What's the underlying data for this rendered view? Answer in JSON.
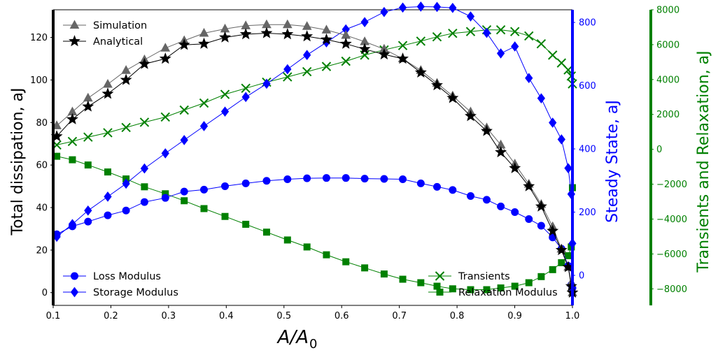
{
  "chart_data": {
    "type": "line",
    "xlabel_main": "A/A",
    "xlabel_sub": "0",
    "x_ticks": [
      "0.1",
      "0.2",
      "0.3",
      "0.4",
      "0.5",
      "0.6",
      "0.7",
      "0.8",
      "0.9",
      "1.0"
    ],
    "xlim": [
      0.1,
      1.0
    ],
    "axes": {
      "left": {
        "label": "Total dissipation, aJ",
        "ylim": [
          -6,
          133
        ],
        "ticks": [
          0,
          20,
          40,
          60,
          80,
          100,
          120
        ],
        "color": "#000000"
      },
      "right1": {
        "label": "Steady State, aJ",
        "ylim": [
          -95,
          840
        ],
        "ticks": [
          0,
          200,
          400,
          600,
          800
        ],
        "color": "#0000ff"
      },
      "right2": {
        "label": "Transients and Relaxation, aJ",
        "ylim": [
          -8950,
          8000
        ],
        "ticks": [
          -8000,
          -6000,
          -4000,
          -2000,
          0,
          2000,
          4000,
          6000,
          8000
        ],
        "color": "#008000"
      }
    },
    "x": [
      0.1062,
      0.1333,
      0.1604,
      0.1946,
      0.2263,
      0.2582,
      0.2944,
      0.3271,
      0.3614,
      0.3978,
      0.4338,
      0.4699,
      0.5061,
      0.5399,
      0.5736,
      0.6073,
      0.6399,
      0.6736,
      0.7059,
      0.7372,
      0.7653,
      0.7924,
      0.8235,
      0.8514,
      0.8758,
      0.9002,
      0.9245,
      0.9459,
      0.9657,
      0.981,
      0.9927,
      0.998,
      1.0
    ],
    "series": [
      {
        "name": "Simulation",
        "axis": "left",
        "color": "#666666",
        "marker": "triangle",
        "values": [
          78.5,
          85,
          91.5,
          98,
          104.5,
          109.5,
          115,
          118.5,
          122,
          124,
          125.5,
          126,
          126,
          125.2,
          123.5,
          121,
          118,
          114.5,
          110,
          104.5,
          98.5,
          92.5,
          85,
          77.5,
          69.5,
          60.5,
          51,
          41.5,
          31,
          20.5,
          12,
          4.5,
          0
        ]
      },
      {
        "name": "Analytical",
        "axis": "left",
        "color": "#000000",
        "marker": "star",
        "values": [
          73.5,
          81.5,
          87.5,
          93.5,
          100,
          107.5,
          110,
          116.5,
          117,
          120,
          121.5,
          122,
          121.5,
          120.5,
          119,
          117,
          114.5,
          112,
          110,
          103.5,
          97.5,
          91.5,
          83,
          76,
          66,
          58.5,
          50,
          40.5,
          29,
          20,
          12,
          3,
          0
        ]
      },
      {
        "name": "Loss Modulus",
        "axis": "right1",
        "color": "#0000ff",
        "marker": "circle",
        "values": [
          130,
          155,
          170,
          190,
          205,
          232,
          245,
          265,
          271,
          282,
          291,
          299,
          304,
          307,
          308,
          308,
          306,
          305,
          304,
          291,
          280,
          270,
          251,
          239,
          218,
          200,
          178,
          157,
          120,
          84,
          30,
          -30,
          -40
        ]
      },
      {
        "name": "Storage Modulus",
        "axis": "right1",
        "color": "#0000ff",
        "marker": "diamond",
        "values": [
          122,
          162,
          205,
          249,
          290,
          338,
          386,
          428,
          472,
          518,
          564,
          606,
          652,
          697,
          737,
          778,
          801,
          833,
          847,
          850,
          849,
          846,
          819,
          767,
          702,
          724,
          624,
          560,
          483,
          430,
          339,
          257,
          101
        ]
      },
      {
        "name": "Transients",
        "axis": "right2",
        "color": "#008000",
        "marker": "x",
        "values": [
          250,
          450,
          700,
          950,
          1250,
          1550,
          1850,
          2250,
          2650,
          3150,
          3500,
          3850,
          4150,
          4450,
          4750,
          5050,
          5400,
          5700,
          5950,
          6200,
          6450,
          6650,
          6750,
          6850,
          6850,
          6750,
          6500,
          6050,
          5400,
          4950,
          4550,
          4200,
          3750
        ]
      },
      {
        "name": "Relaxation Modulus",
        "axis": "right2",
        "color": "#008000",
        "marker": "square",
        "values": [
          -400,
          -600,
          -900,
          -1300,
          -1700,
          -2150,
          -2550,
          -2950,
          -3400,
          -3850,
          -4300,
          -4750,
          -5200,
          -5600,
          -6050,
          -6450,
          -6800,
          -7150,
          -7450,
          -7650,
          -7850,
          -8000,
          -8050,
          -8050,
          -7950,
          -7850,
          -7650,
          -7300,
          -6900,
          -6500,
          -6100,
          -5600,
          -2200
        ]
      }
    ],
    "legend_left_top": [
      "Simulation",
      "Analytical"
    ],
    "legend_left_bottom": [
      "Loss Modulus",
      "Storage Modulus"
    ],
    "legend_right_bottom": [
      "Transients",
      "Relaxation Modulus"
    ]
  }
}
